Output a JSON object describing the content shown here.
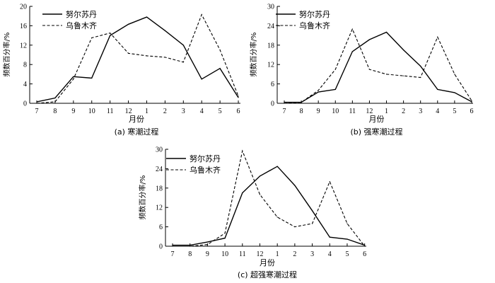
{
  "chart_data": [
    {
      "type": "line",
      "caption": "(a) 寒潮过程",
      "xlabel": "月份",
      "ylabel": "频数百分率/%",
      "categories": [
        "7",
        "8",
        "9",
        "10",
        "11",
        "12",
        "1",
        "2",
        "3",
        "4",
        "5",
        "6"
      ],
      "ylim": [
        0,
        20
      ],
      "yticks": [
        "0",
        "4",
        "8",
        "12",
        "16",
        "20"
      ],
      "legend_position": "top-left",
      "series": [
        {
          "name": "努尔苏丹",
          "style": "solid",
          "values": [
            0.3,
            1.1,
            5.5,
            5.2,
            14.0,
            16.3,
            17.8,
            15.0,
            12.0,
            5.0,
            7.2,
            1.2
          ]
        },
        {
          "name": "乌鲁木齐",
          "style": "dashed",
          "values": [
            0.0,
            0.3,
            5.0,
            13.5,
            14.5,
            10.3,
            9.8,
            9.5,
            8.5,
            18.3,
            11.0,
            1.5
          ]
        }
      ]
    },
    {
      "type": "line",
      "caption": "(b) 强寒潮过程",
      "xlabel": "月份",
      "ylabel": "频数百分率/%",
      "categories": [
        "7",
        "8",
        "9",
        "10",
        "11",
        "12",
        "1",
        "2",
        "3",
        "4",
        "5",
        "6"
      ],
      "ylim": [
        0,
        30
      ],
      "yticks": [
        "0",
        "6",
        "12",
        "18",
        "24",
        "30"
      ],
      "legend_position": "top-right",
      "series": [
        {
          "name": "努尔苏丹",
          "style": "solid",
          "values": [
            0.3,
            0.3,
            3.5,
            4.3,
            16.0,
            19.7,
            22.0,
            16.5,
            11.5,
            4.3,
            3.3,
            0.5
          ]
        },
        {
          "name": "乌鲁木齐",
          "style": "dashed",
          "values": [
            0.0,
            0.3,
            4.0,
            10.5,
            23.0,
            10.5,
            9.0,
            8.5,
            8.0,
            20.5,
            9.0,
            0.8
          ]
        }
      ]
    },
    {
      "type": "line",
      "caption": "(c) 超强寒潮过程",
      "xlabel": "月份",
      "ylabel": "频数百分率/%",
      "categories": [
        "7",
        "8",
        "9",
        "10",
        "11",
        "12",
        "1",
        "2",
        "3",
        "4",
        "5",
        "6"
      ],
      "ylim": [
        0,
        30
      ],
      "yticks": [
        "0",
        "6",
        "12",
        "18",
        "24",
        "30"
      ],
      "legend_position": "top-right",
      "series": [
        {
          "name": "努尔苏丹",
          "style": "solid",
          "values": [
            0.3,
            0.3,
            1.3,
            2.5,
            16.5,
            21.7,
            24.7,
            18.8,
            11.0,
            2.8,
            2.2,
            0.3
          ]
        },
        {
          "name": "乌鲁木齐",
          "style": "dashed",
          "values": [
            0.0,
            0.0,
            0.5,
            4.0,
            29.5,
            16.0,
            9.0,
            6.0,
            7.0,
            20.0,
            7.0,
            0.0
          ]
        }
      ]
    }
  ]
}
